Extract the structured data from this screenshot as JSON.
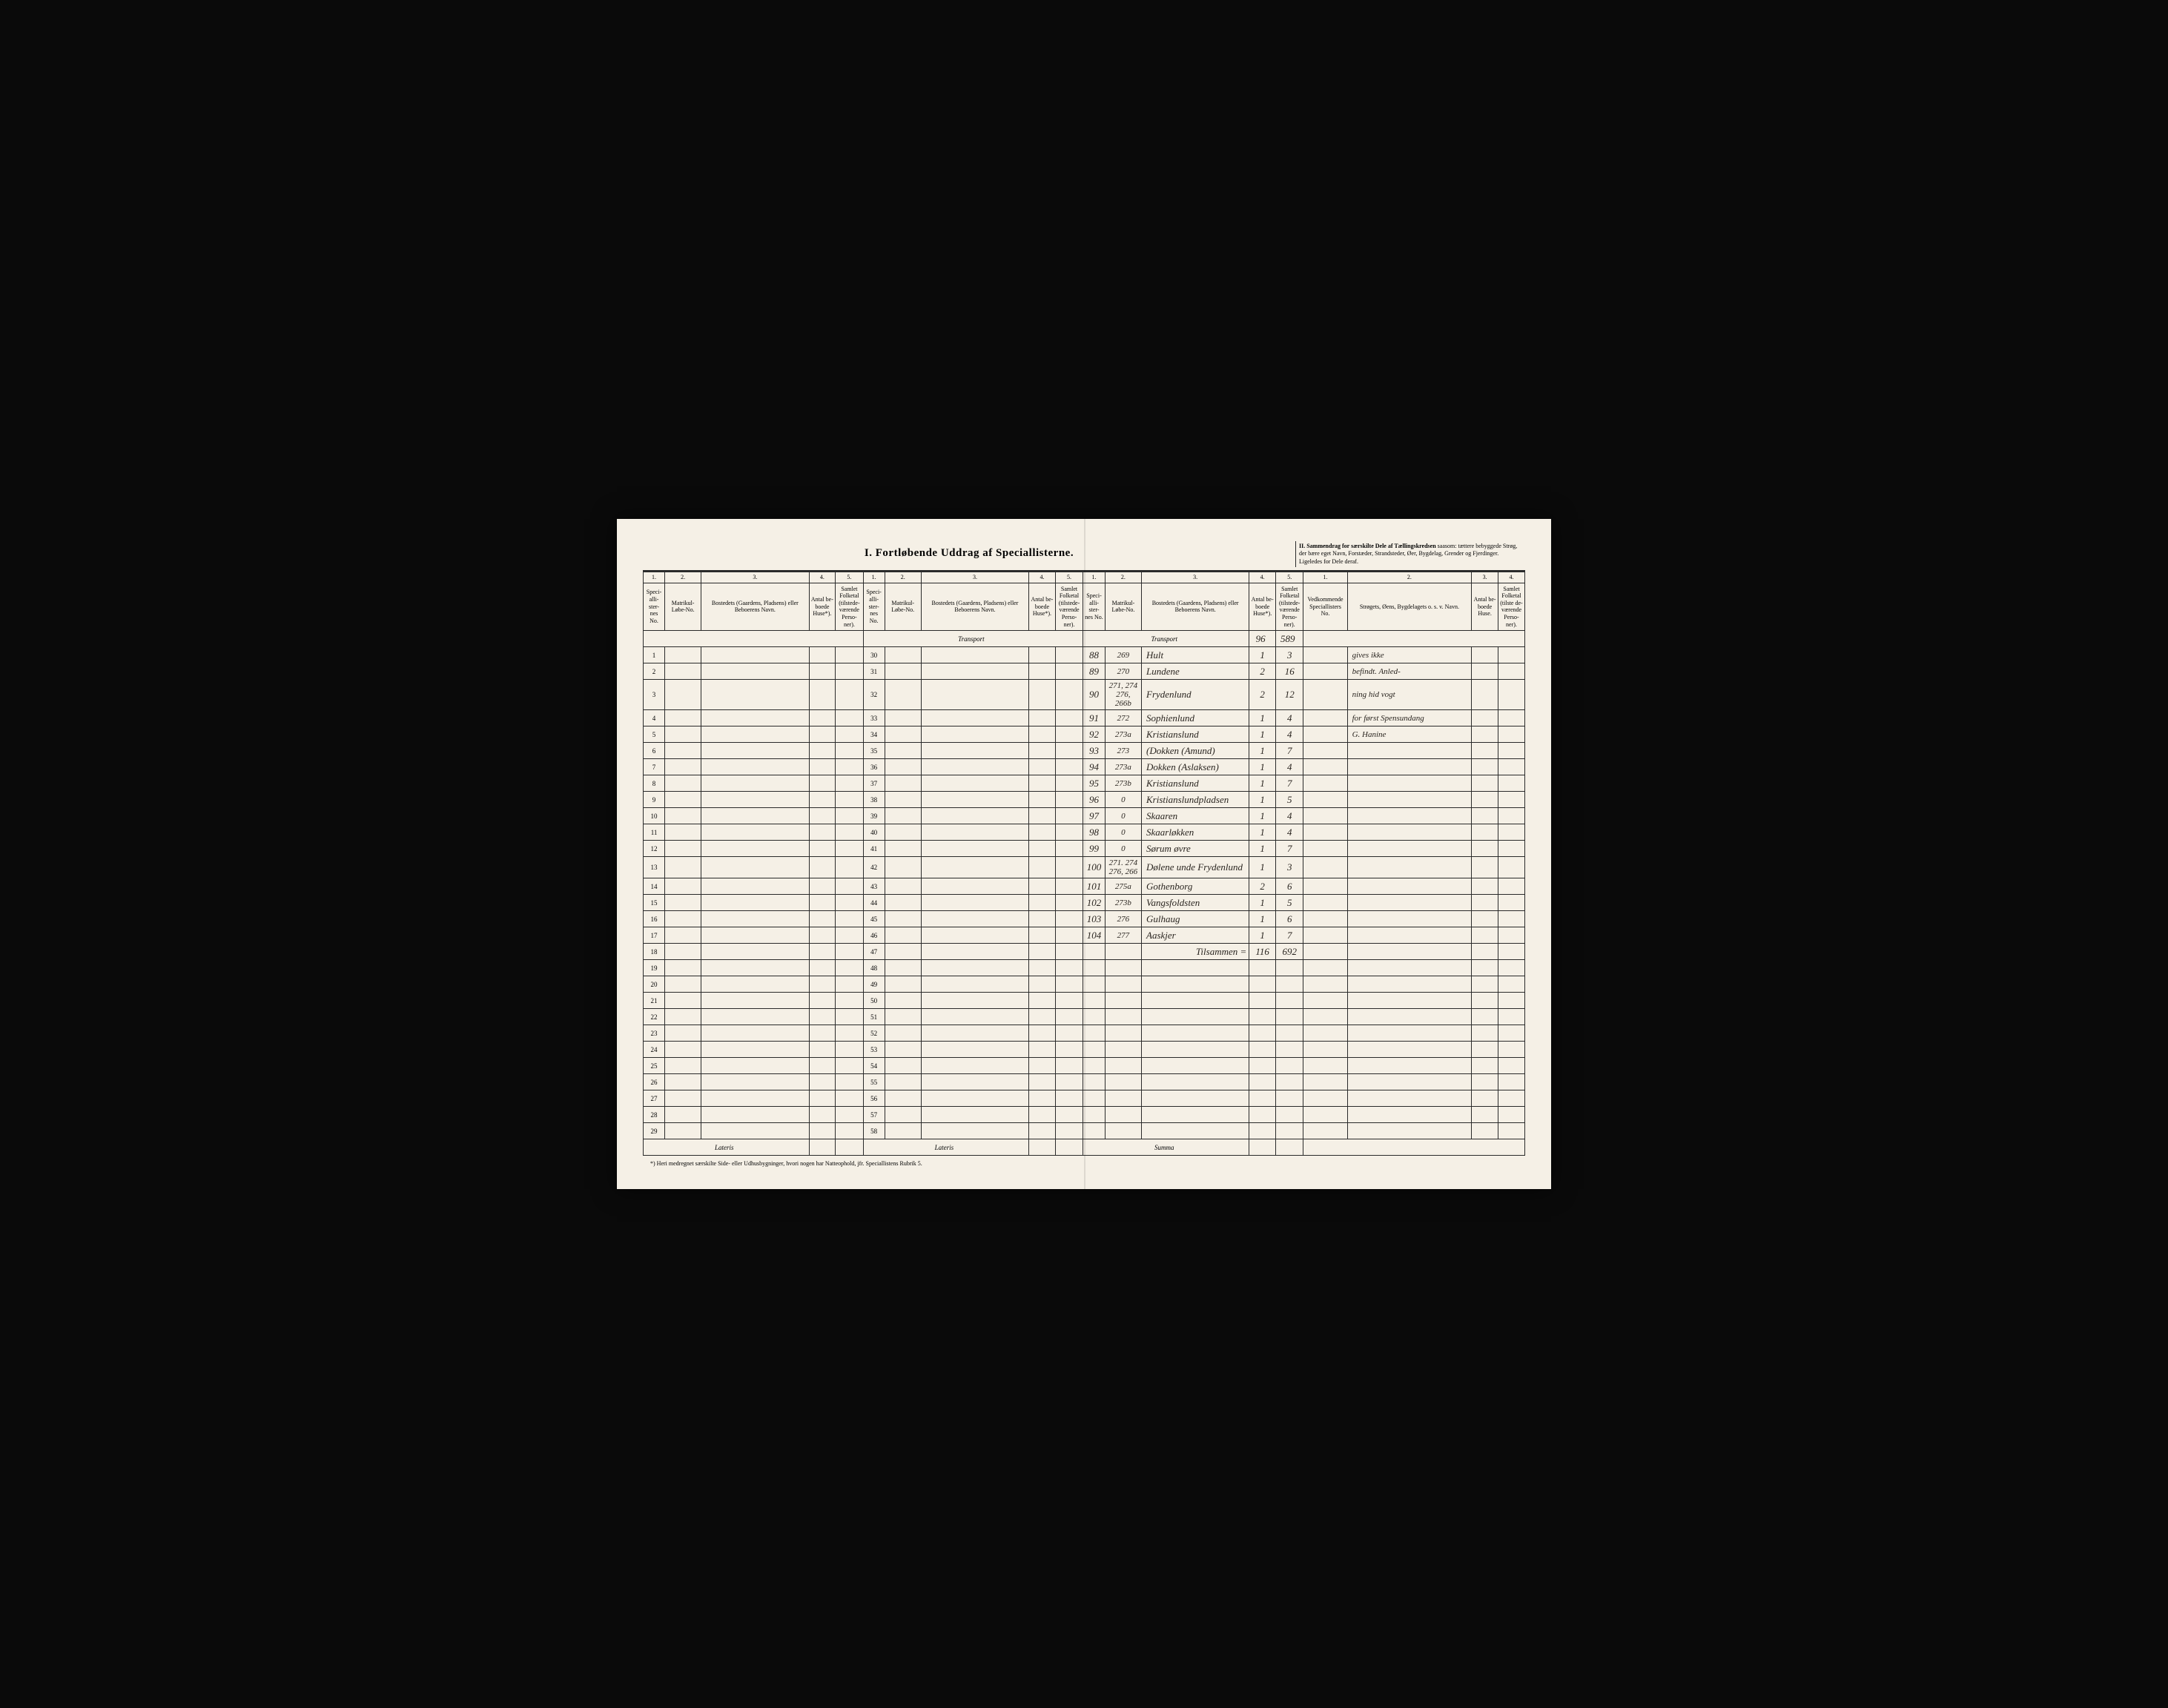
{
  "title": "I.  Fortløbende Uddrag af Speciallisterne.",
  "section_ii": {
    "title": "II.  Sammendrag for særskilte Dele af Tællingskredsen",
    "subtitle": "saasom: tættere bebyggede Strøg, der bære eget Navn, Forstæder, Strandsteder, Øer, Bygdelag, Grender og Fjerdinger. Ligeledes for Dele deraf."
  },
  "header_nums": [
    "1.",
    "2.",
    "3.",
    "4.",
    "5.",
    "1.",
    "2.",
    "3.",
    "4.",
    "5.",
    "1.",
    "2.",
    "3.",
    "4.",
    "5.",
    "1.",
    "2.",
    "3.",
    "4."
  ],
  "headers": {
    "specialliste": "Speci-alli-ster-nes No.",
    "matrikul": "Matrikul-Løbe-No.",
    "bosted": "Bostedets (Gaardens, Pladsens) eller Beboerens Navn.",
    "antal_huse": "Antal be-boede Huse*).",
    "folketal": "Samlet Folketal (tilstede-værende Perso-ner).",
    "vedkommende": "Vedkommende Speciallisters No.",
    "strogets": "Strøgets, Øens, Bygdelagets o. s. v. Navn.",
    "antal_huse2": "Antal be-boede Huse.",
    "folketal2": "Samlet Folketal (tilste de-værende Perso-ner)."
  },
  "transport": "Transport",
  "lateris": "Lateris",
  "summa": "Summa",
  "tilsammen": "Tilsammen =",
  "transport_vals": {
    "huse": "96",
    "folk": "589"
  },
  "left_rows": [
    1,
    2,
    3,
    4,
    5,
    6,
    7,
    8,
    9,
    10,
    11,
    12,
    13,
    14,
    15,
    16,
    17,
    18,
    19,
    20,
    21,
    22,
    23,
    24,
    25,
    26,
    27,
    28,
    29
  ],
  "mid_rows": [
    30,
    31,
    32,
    33,
    34,
    35,
    36,
    37,
    38,
    39,
    40,
    41,
    42,
    43,
    44,
    45,
    46,
    47,
    48,
    49,
    50,
    51,
    52,
    53,
    54,
    55,
    56,
    57,
    58
  ],
  "entries": [
    {
      "no": "88",
      "mat": "269",
      "name": "Hult",
      "huse": "1",
      "folk": "3"
    },
    {
      "no": "89",
      "mat": "270",
      "name": "Lundene",
      "huse": "2",
      "folk": "16"
    },
    {
      "no": "90",
      "mat": "271, 274 276, 266b",
      "name": "Frydenlund",
      "huse": "2",
      "folk": "12"
    },
    {
      "no": "91",
      "mat": "272",
      "name": "Sophienlund",
      "huse": "1",
      "folk": "4"
    },
    {
      "no": "92",
      "mat": "273a",
      "name": "Kristianslund",
      "huse": "1",
      "folk": "4"
    },
    {
      "no": "93",
      "mat": "273",
      "name": "(Dokken (Amund)",
      "huse": "1",
      "folk": "7"
    },
    {
      "no": "94",
      "mat": "273a",
      "name": "Dokken (Aslaksen)",
      "huse": "1",
      "folk": "4"
    },
    {
      "no": "95",
      "mat": "273b",
      "name": "Kristianslund",
      "huse": "1",
      "folk": "7"
    },
    {
      "no": "96",
      "mat": "0",
      "name": "Kristianslundpladsen",
      "huse": "1",
      "folk": "5"
    },
    {
      "no": "97",
      "mat": "0",
      "name": "Skaaren",
      "huse": "1",
      "folk": "4"
    },
    {
      "no": "98",
      "mat": "0",
      "name": "Skaarløkken",
      "huse": "1",
      "folk": "4"
    },
    {
      "no": "99",
      "mat": "0",
      "name": "Sørum øvre",
      "huse": "1",
      "folk": "7"
    },
    {
      "no": "100",
      "mat": "271. 274 276, 266",
      "name": "Dølene unde Frydenlund",
      "huse": "1",
      "folk": "3"
    },
    {
      "no": "101",
      "mat": "275a",
      "name": "Gothenborg",
      "huse": "2",
      "folk": "6"
    },
    {
      "no": "102",
      "mat": "273b",
      "name": "Vangsfoldsten",
      "huse": "1",
      "folk": "5"
    },
    {
      "no": "103",
      "mat": "276",
      "name": "Gulhaug",
      "huse": "1",
      "folk": "6"
    },
    {
      "no": "104",
      "mat": "277",
      "name": "Aaskjer",
      "huse": "1",
      "folk": "7"
    }
  ],
  "totals": {
    "huse": "116",
    "folk": "692"
  },
  "right_notes": [
    "gives ikke",
    "befindt. Anled-",
    "ning hid vogt",
    "for først Spensundang",
    "G. Hanine"
  ],
  "footnote": "*) Heri medregnet særskilte Side- eller Udhusbygninger, hvori nogen har Natteophold, jfr. Speciallistens Rubrik 5."
}
